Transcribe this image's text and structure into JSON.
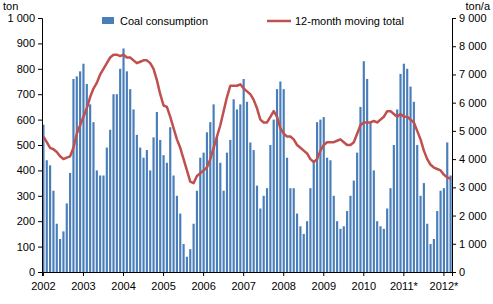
{
  "chart_data": {
    "type": "bar",
    "y_label": "ton",
    "y2_label": "ton/a",
    "legend": "top",
    "categories": [
      "2002",
      null,
      null,
      null,
      null,
      null,
      null,
      null,
      null,
      null,
      null,
      null,
      "2003",
      null,
      null,
      null,
      null,
      null,
      null,
      null,
      null,
      null,
      null,
      null,
      "2004",
      null,
      null,
      null,
      null,
      null,
      null,
      null,
      null,
      null,
      null,
      null,
      "2005",
      null,
      null,
      null,
      null,
      null,
      null,
      null,
      null,
      null,
      null,
      null,
      "2006",
      null,
      null,
      null,
      null,
      null,
      null,
      null,
      null,
      null,
      null,
      null,
      "2007",
      null,
      null,
      null,
      null,
      null,
      null,
      null,
      null,
      null,
      null,
      null,
      "2008",
      null,
      null,
      null,
      null,
      null,
      null,
      null,
      null,
      null,
      null,
      null,
      "2009",
      null,
      null,
      null,
      null,
      null,
      null,
      null,
      null,
      null,
      null,
      null,
      "2010",
      null,
      null,
      null,
      null,
      null,
      null,
      null,
      null,
      null,
      null,
      null,
      "2011*",
      null,
      null,
      null,
      null,
      null,
      null,
      null,
      null,
      null,
      null,
      null,
      "2012*",
      null,
      null
    ],
    "series": [
      {
        "name": "Coal consumption",
        "type": "bar",
        "color": "#4a7ebb",
        "values": [
          580,
          440,
          420,
          320,
          190,
          130,
          160,
          270,
          390,
          760,
          770,
          790,
          820,
          740,
          660,
          590,
          400,
          380,
          380,
          490,
          560,
          700,
          700,
          800,
          880,
          790,
          720,
          640,
          540,
          490,
          450,
          480,
          400,
          530,
          630,
          520,
          460,
          430,
          570,
          380,
          300,
          230,
          110,
          60,
          90,
          190,
          320,
          450,
          470,
          550,
          590,
          660,
          530,
          430,
          320,
          470,
          520,
          680,
          640,
          660,
          760,
          670,
          510,
          480,
          340,
          250,
          300,
          330,
          500,
          600,
          720,
          750,
          720,
          450,
          330,
          330,
          230,
          180,
          150,
          200,
          330,
          440,
          590,
          600,
          610,
          450,
          440,
          300,
          200,
          170,
          180,
          240,
          300,
          360,
          470,
          650,
          830,
          760,
          590,
          400,
          200,
          180,
          170,
          250,
          330,
          500,
          640,
          780,
          820,
          800,
          730,
          670,
          500,
          300,
          350,
          190,
          110,
          130,
          240,
          320,
          330,
          510,
          380
        ]
      },
      {
        "name": "12-month moving total",
        "type": "line",
        "axis": "y2",
        "color": "#c0504d",
        "values": [
          4800,
          4600,
          4400,
          4350,
          4250,
          4100,
          4000,
          4050,
          4100,
          4400,
          4900,
          5200,
          5500,
          5800,
          6200,
          6500,
          6700,
          7000,
          7200,
          7400,
          7600,
          7700,
          7700,
          7650,
          7700,
          7600,
          7600,
          7500,
          7400,
          7450,
          7500,
          7500,
          7400,
          7200,
          6800,
          6300,
          5900,
          5850,
          5500,
          5100,
          4700,
          4400,
          4000,
          3600,
          3200,
          3150,
          3400,
          3500,
          3600,
          3700,
          4000,
          4400,
          4800,
          5200,
          5700,
          6200,
          6600,
          6600,
          6600,
          6650,
          6500,
          6400,
          6300,
          6100,
          5800,
          5400,
          5300,
          5300,
          5500,
          5700,
          5500,
          5100,
          4900,
          4800,
          4800,
          4700,
          4500,
          4400,
          4300,
          4200,
          4000,
          3900,
          4000,
          4300,
          4500,
          4600,
          4600,
          4600,
          4650,
          4700,
          4600,
          4500,
          4500,
          4600,
          4900,
          5200,
          5300,
          5300,
          5300,
          5350,
          5300,
          5400,
          5500,
          5700,
          5700,
          5600,
          5500,
          5600,
          5500,
          5500,
          5400,
          5300,
          5000,
          4700,
          4300,
          4000,
          3800,
          3700,
          3650,
          3600,
          3450,
          3350,
          3300
        ]
      }
    ],
    "ylim": [
      0,
      1000
    ],
    "yticks": [
      0,
      100,
      200,
      300,
      400,
      500,
      600,
      700,
      800,
      900,
      {
        "value": 1000,
        "label": "1 000"
      }
    ],
    "y2lim": [
      0,
      9000
    ],
    "y2ticks": [
      0,
      {
        "value": 1000,
        "label": "1 000"
      },
      {
        "value": 2000,
        "label": "2 000"
      },
      {
        "value": 3000,
        "label": "3 000"
      },
      {
        "value": 4000,
        "label": "4 000"
      },
      {
        "value": 5000,
        "label": "5 000"
      },
      {
        "value": 6000,
        "label": "6 000"
      },
      {
        "value": 7000,
        "label": "7 000"
      },
      {
        "value": 8000,
        "label": "8 000"
      },
      {
        "value": 9000,
        "label": "9 000"
      }
    ],
    "grid": false
  }
}
